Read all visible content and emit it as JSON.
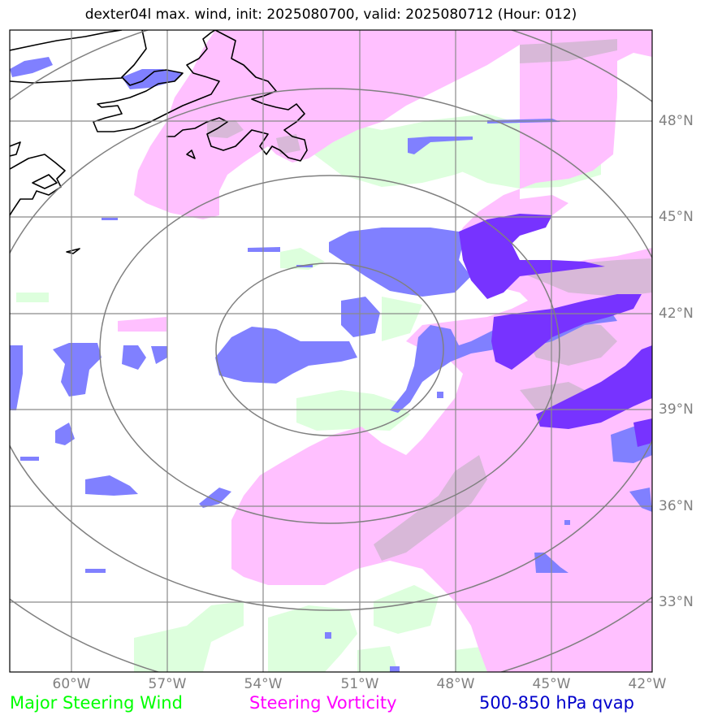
{
  "title": "dexter04l max. wind, init: 2025080700, valid: 2025080712 (Hour: 012)",
  "lon_ticks": [
    "60°W",
    "57°W",
    "54°W",
    "51°W",
    "48°W",
    "45°W",
    "42°W"
  ],
  "lat_ticks": [
    "48°N",
    "45°N",
    "42°N",
    "39°N",
    "36°N",
    "33°N"
  ],
  "legend": [
    {
      "label": "Major Steering Wind",
      "color": "#00ff00"
    },
    {
      "label": "Steering Vorticity",
      "color": "#ff00ff"
    },
    {
      "label": "500-850 hPa qvap",
      "color": "#0000cc"
    }
  ],
  "colors": {
    "steering_wind_fill": "#ddffdd",
    "vorticity_fill": "#ffc0ff",
    "qvap_fill": "#8080ff",
    "qvap_strong_fill": "#7733ff",
    "gridline": "#8a8a8a",
    "range_ring": "#808080",
    "coastline": "#000000"
  }
}
